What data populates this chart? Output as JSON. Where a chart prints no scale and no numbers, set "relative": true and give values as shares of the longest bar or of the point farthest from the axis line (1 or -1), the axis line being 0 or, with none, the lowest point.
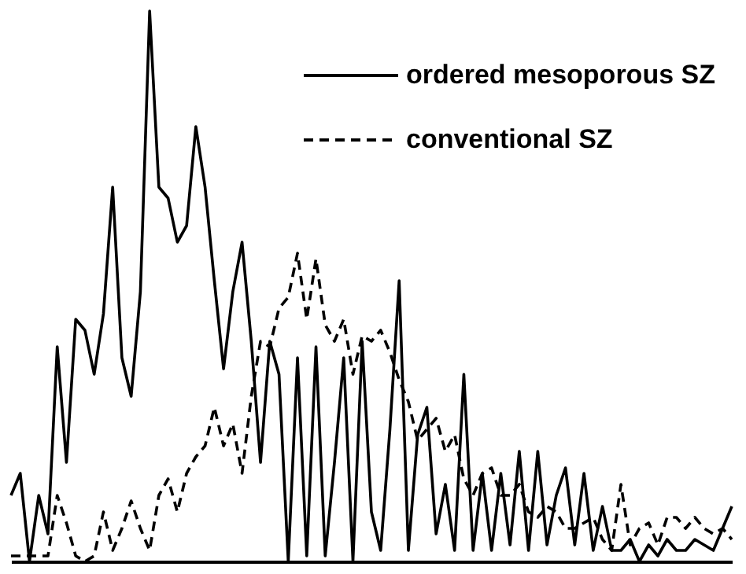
{
  "chart_data": {
    "type": "line",
    "relative": true,
    "legend": "top right",
    "categories": [
      null,
      null,
      null,
      null,
      null,
      null,
      null,
      null,
      null,
      null,
      null,
      null,
      null,
      null,
      null,
      null,
      null,
      null,
      null,
      null,
      null,
      null,
      null,
      null,
      null,
      null,
      null,
      null,
      null,
      null,
      null,
      null,
      null,
      null,
      null,
      null,
      null,
      null,
      null,
      null,
      null,
      null,
      null,
      null,
      null,
      null,
      null,
      null,
      null,
      null,
      null,
      null,
      null,
      null,
      null,
      null,
      null,
      null,
      null,
      null,
      null,
      null,
      null,
      null,
      null,
      null,
      null,
      null,
      null,
      null,
      null,
      null,
      null,
      null,
      null,
      null,
      null,
      null,
      null
    ],
    "series": [
      {
        "name": "ordered mesoporous SZ",
        "color": "#000000",
        "line_style": "solid",
        "values": [
          0.12,
          0.16,
          0,
          0.12,
          0.05,
          0.39,
          0.18,
          0.44,
          0.42,
          0.34,
          0.45,
          0.68,
          0.37,
          0.3,
          0.49,
          1,
          0.68,
          0.66,
          0.58,
          0.61,
          0.79,
          0.68,
          0.51,
          0.35,
          0.49,
          0.58,
          0.4,
          0.18,
          0.4,
          0.34,
          0,
          0.37,
          0.01,
          0.39,
          0.01,
          0.18,
          0.37,
          0,
          0.4,
          0.09,
          0.02,
          0.24,
          0.51,
          0.02,
          0.23,
          0.28,
          0.05,
          0.14,
          0.02,
          0.34,
          0.02,
          0.16,
          0.02,
          0.16,
          0.03,
          0.2,
          0.02,
          0.2,
          0.03,
          0.12,
          0.17,
          0.03,
          0.16,
          0.02,
          0.1,
          0.02,
          0.02,
          0.04,
          0,
          0.03,
          0.01,
          0.04,
          0.02,
          0.02,
          0.04,
          0.03,
          0.02,
          0.06,
          0.1
        ]
      },
      {
        "name": "conventional SZ",
        "color": "#000000",
        "line_style": "dashed",
        "values": [
          0.01,
          0.01,
          0.01,
          0.01,
          0.01,
          0.12,
          0.07,
          0.01,
          0,
          0.01,
          0.09,
          0.02,
          0.06,
          0.11,
          0.06,
          0.02,
          0.12,
          0.15,
          0.09,
          0.16,
          0.19,
          0.21,
          0.28,
          0.21,
          0.25,
          0.16,
          0.3,
          0.4,
          0.39,
          0.46,
          0.48,
          0.56,
          0.44,
          0.55,
          0.43,
          0.4,
          0.44,
          0.34,
          0.41,
          0.4,
          0.42,
          0.38,
          0.33,
          0.29,
          0.22,
          0.24,
          0.26,
          0.2,
          0.23,
          0.15,
          0.12,
          0.16,
          0.17,
          0.12,
          0.12,
          0.14,
          0.09,
          0.08,
          0.1,
          0.09,
          0.06,
          0.06,
          0.07,
          0.08,
          0.04,
          0.02,
          0.14,
          0.03,
          0.06,
          0.07,
          0.03,
          0.08,
          0.08,
          0.06,
          0.08,
          0.06,
          0.05,
          0.06,
          0.04
        ]
      }
    ]
  }
}
